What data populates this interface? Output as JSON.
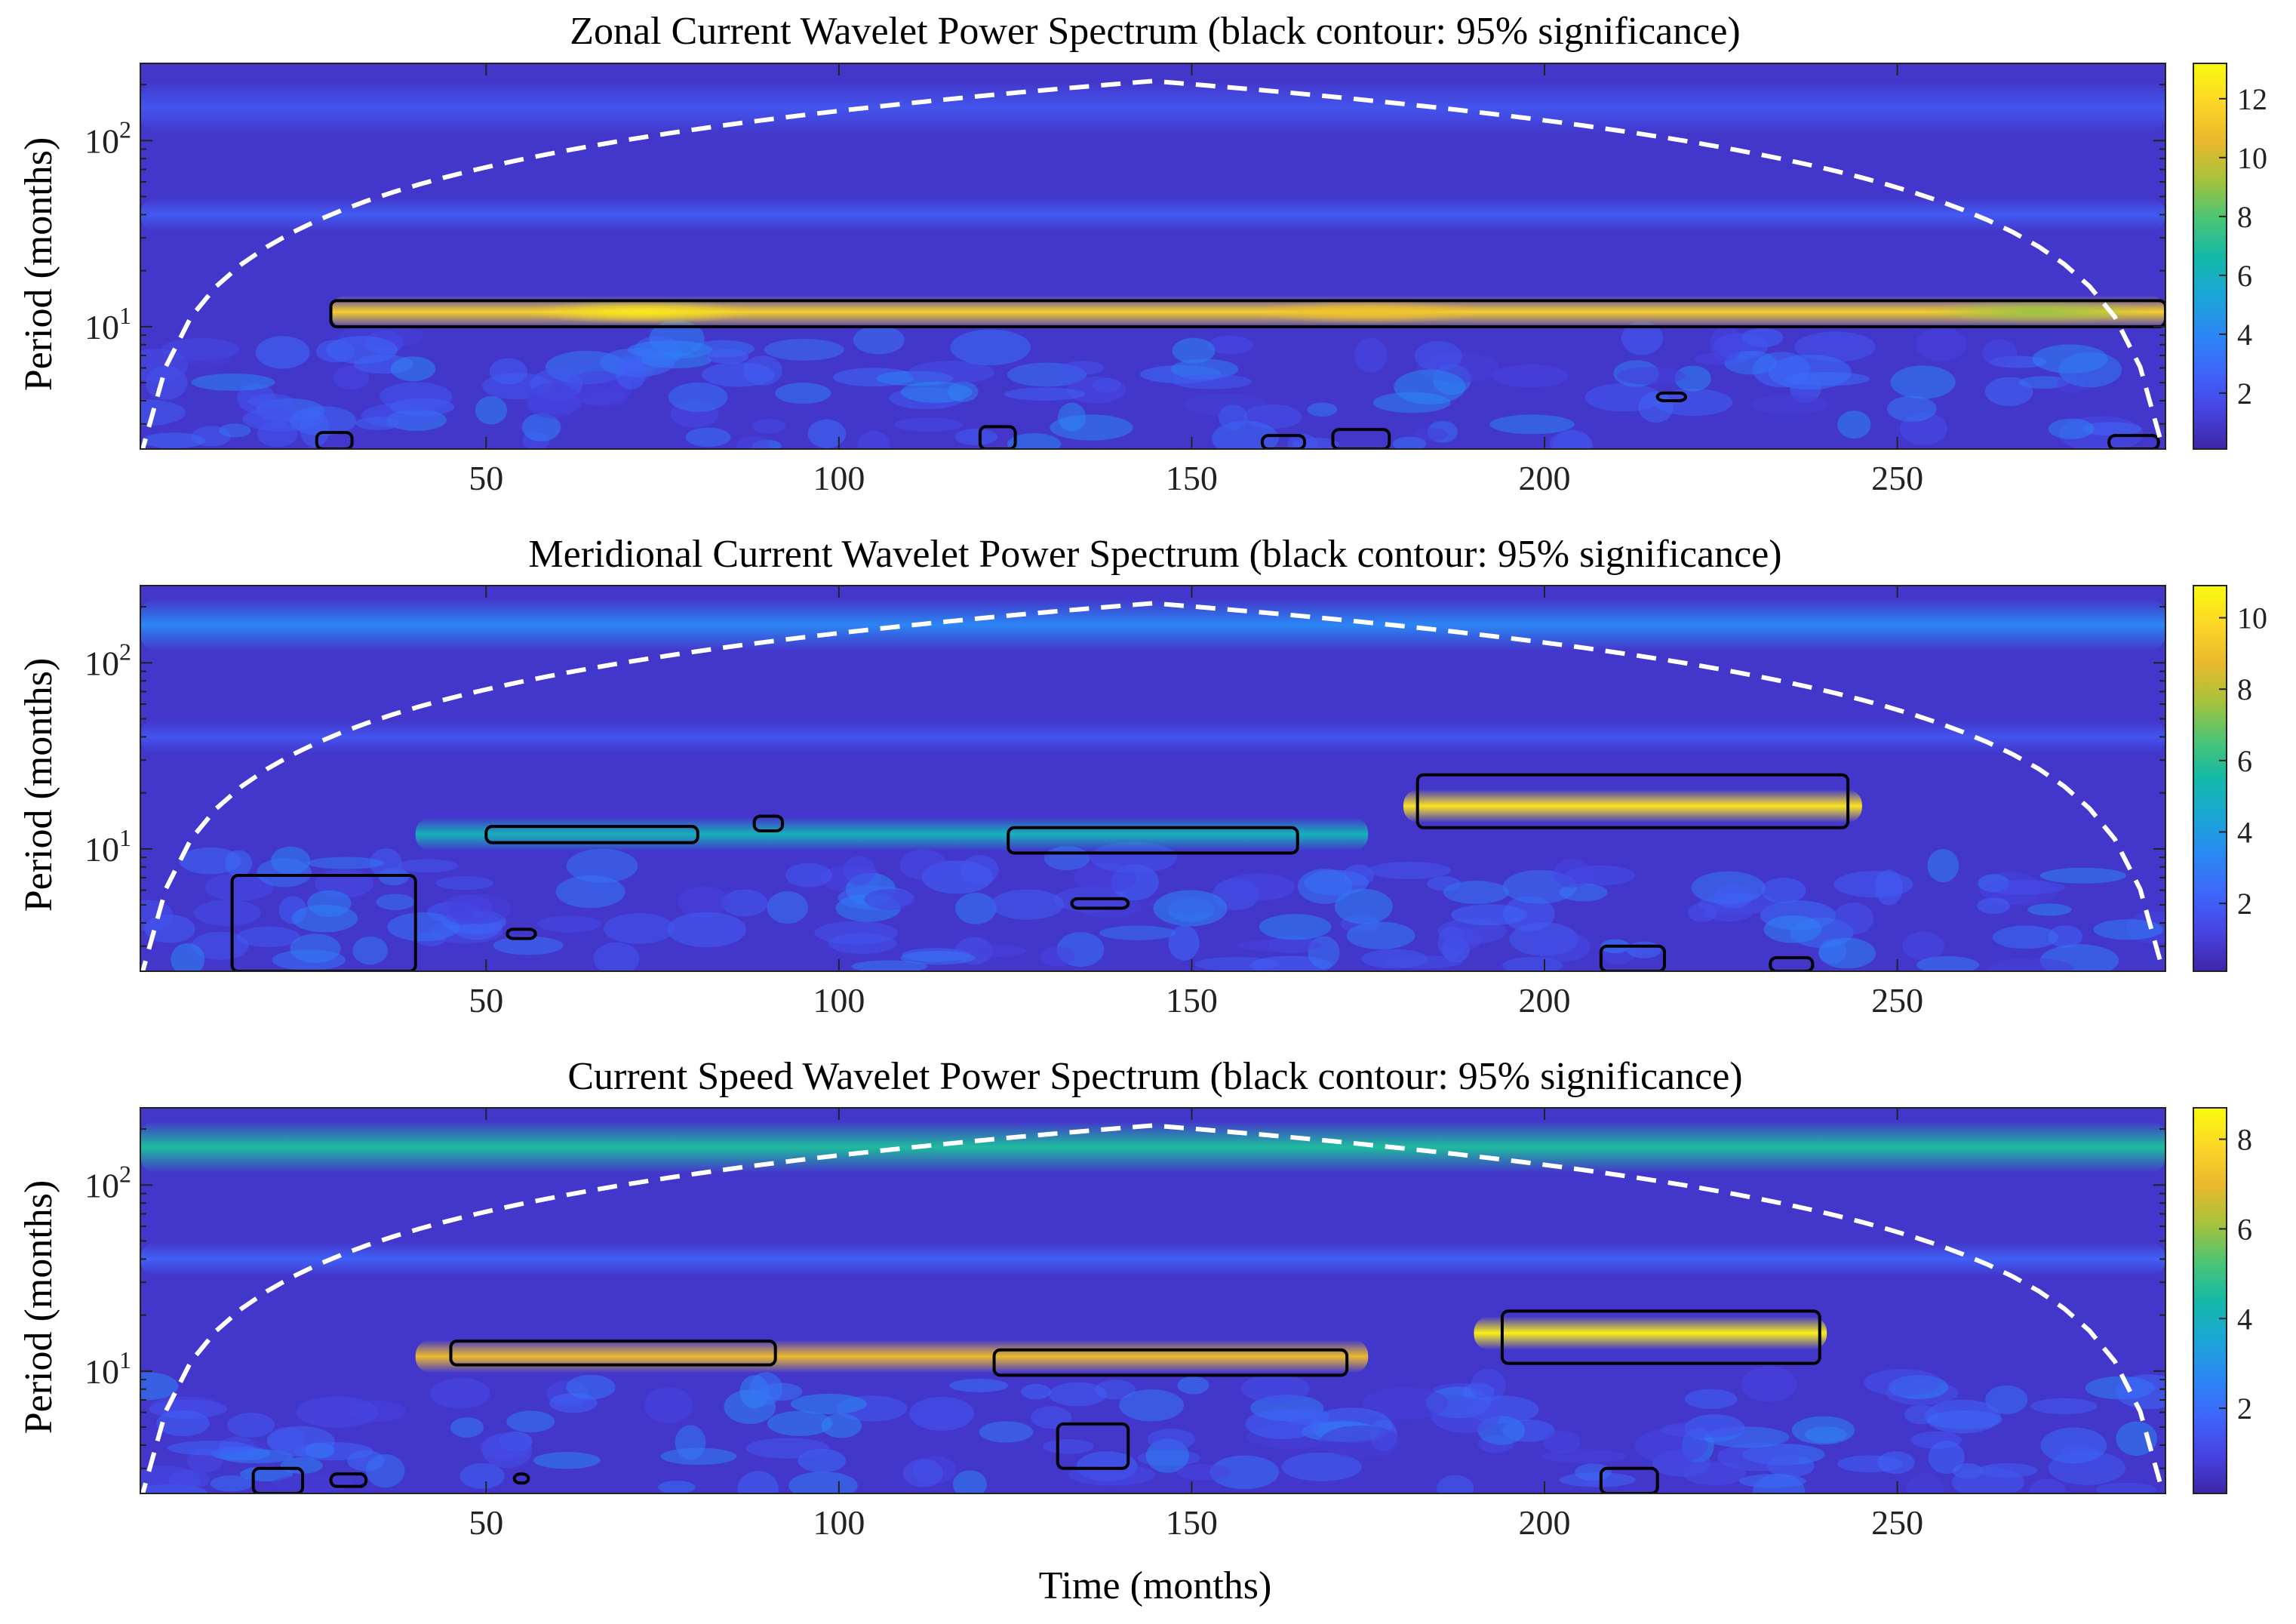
{
  "colors": {
    "colormap": [
      "#3e26a8",
      "#4743e2",
      "#3f66fa",
      "#2a88f4",
      "#1ba6d6",
      "#14b9a6",
      "#4cc574",
      "#a7c23b",
      "#eab92d",
      "#fcd728",
      "#f9fb0e"
    ],
    "coi_line": "#ffffff",
    "contour_line": "#000000"
  },
  "chart_data": [
    {
      "type": "heatmap",
      "title": "Zonal Current Wavelet Power Spectrum (black contour: 95% significance)",
      "ylabel": "Period (months)",
      "xlabel": "",
      "x_ticks": [
        50,
        100,
        150,
        200,
        250
      ],
      "xlim": [
        1,
        288
      ],
      "y_scale": "log",
      "y_ticks": [
        {
          "base": "10",
          "exp": "1",
          "value": 10
        },
        {
          "base": "10",
          "exp": "2",
          "value": 100
        }
      ],
      "ylim": [
        2.2,
        260
      ],
      "colorbar": {
        "ticks": [
          2,
          4,
          6,
          8,
          10,
          12
        ],
        "range": [
          0.1,
          13.2
        ]
      },
      "bands": [
        {
          "period": 12,
          "x": [
            28,
            288
          ],
          "peak": 11.5,
          "hotspots": [
            {
              "x": 72,
              "v": 12.5
            },
            {
              "x": 175,
              "v": 11
            },
            {
              "x": 270,
              "v": 9
            }
          ]
        },
        {
          "period": 40,
          "x": [
            1,
            288
          ],
          "peak": 2.2
        },
        {
          "period": 150,
          "x": [
            1,
            288
          ],
          "peak": 2.0
        }
      ],
      "significance_regions": [
        {
          "x": [
            28,
            288
          ],
          "period": [
            10,
            13.8
          ]
        },
        {
          "x": [
            26,
            31
          ],
          "period": [
            2.2,
            2.7
          ]
        },
        {
          "x": [
            120,
            125
          ],
          "period": [
            2.2,
            2.9
          ]
        },
        {
          "x": [
            160,
            166
          ],
          "period": [
            2.2,
            2.6
          ]
        },
        {
          "x": [
            170,
            178
          ],
          "period": [
            2.2,
            2.8
          ]
        },
        {
          "x": [
            216,
            220
          ],
          "period": [
            4.0,
            4.4
          ]
        },
        {
          "x": [
            280,
            287
          ],
          "period": [
            2.2,
            2.6
          ]
        }
      ]
    },
    {
      "type": "heatmap",
      "title": "Meridional Current Wavelet Power Spectrum (black contour: 95% significance)",
      "ylabel": "Period (months)",
      "xlabel": "",
      "x_ticks": [
        50,
        100,
        150,
        200,
        250
      ],
      "xlim": [
        1,
        288
      ],
      "y_scale": "log",
      "y_ticks": [
        {
          "base": "10",
          "exp": "1",
          "value": 10
        },
        {
          "base": "10",
          "exp": "2",
          "value": 100
        }
      ],
      "ylim": [
        2.2,
        260
      ],
      "colorbar": {
        "ticks": [
          2,
          4,
          6,
          8,
          10
        ],
        "range": [
          0.1,
          10.9
        ]
      },
      "bands": [
        {
          "period": 12,
          "x": [
            40,
            175
          ],
          "peak": 5.0
        },
        {
          "period": 17,
          "x": [
            180,
            245
          ],
          "peak": 10.2
        },
        {
          "period": 40,
          "x": [
            1,
            288
          ],
          "peak": 1.6
        },
        {
          "period": 160,
          "x": [
            1,
            288
          ],
          "peak": 3.2
        }
      ],
      "significance_regions": [
        {
          "x": [
            50,
            80
          ],
          "period": [
            10.8,
            13.2
          ]
        },
        {
          "x": [
            88,
            92
          ],
          "period": [
            12.5,
            15
          ]
        },
        {
          "x": [
            124,
            165
          ],
          "period": [
            9.5,
            13
          ]
        },
        {
          "x": [
            182,
            243
          ],
          "period": [
            13,
            25
          ]
        },
        {
          "x": [
            14,
            40
          ],
          "period": [
            2.2,
            7.2
          ]
        },
        {
          "x": [
            53,
            57
          ],
          "period": [
            3.3,
            3.7
          ]
        },
        {
          "x": [
            133,
            141
          ],
          "period": [
            4.8,
            5.4
          ]
        },
        {
          "x": [
            208,
            217
          ],
          "period": [
            2.2,
            3.0
          ]
        },
        {
          "x": [
            232,
            238
          ],
          "period": [
            2.2,
            2.6
          ]
        }
      ]
    },
    {
      "type": "heatmap",
      "title": "Current Speed Wavelet Power Spectrum (black contour: 95% significance)",
      "ylabel": "Period (months)",
      "xlabel": "Time (months)",
      "x_ticks": [
        50,
        100,
        150,
        200,
        250
      ],
      "xlim": [
        1,
        288
      ],
      "y_scale": "log",
      "y_ticks": [
        {
          "base": "10",
          "exp": "1",
          "value": 10
        },
        {
          "base": "10",
          "exp": "2",
          "value": 100
        }
      ],
      "ylim": [
        2.2,
        260
      ],
      "colorbar": {
        "ticks": [
          2,
          4,
          6,
          8
        ],
        "range": [
          0.1,
          8.7
        ]
      },
      "bands": [
        {
          "period": 12,
          "x": [
            40,
            175
          ],
          "peak": 7.0
        },
        {
          "period": 16,
          "x": [
            190,
            240
          ],
          "peak": 8.4
        },
        {
          "period": 40,
          "x": [
            1,
            288
          ],
          "peak": 1.6
        },
        {
          "period": 160,
          "x": [
            1,
            288
          ],
          "peak": 4.5
        }
      ],
      "significance_regions": [
        {
          "x": [
            45,
            91
          ],
          "period": [
            10.8,
            14.5
          ]
        },
        {
          "x": [
            122,
            172
          ],
          "period": [
            9.5,
            13
          ]
        },
        {
          "x": [
            194,
            239
          ],
          "period": [
            11,
            21
          ]
        },
        {
          "x": [
            131,
            141
          ],
          "period": [
            3.0,
            5.2
          ]
        },
        {
          "x": [
            17,
            24
          ],
          "period": [
            2.2,
            3.0
          ]
        },
        {
          "x": [
            28,
            33
          ],
          "period": [
            2.4,
            2.8
          ]
        },
        {
          "x": [
            54,
            56
          ],
          "period": [
            2.5,
            2.8
          ]
        },
        {
          "x": [
            208,
            216
          ],
          "period": [
            2.2,
            3.0
          ]
        }
      ]
    }
  ]
}
